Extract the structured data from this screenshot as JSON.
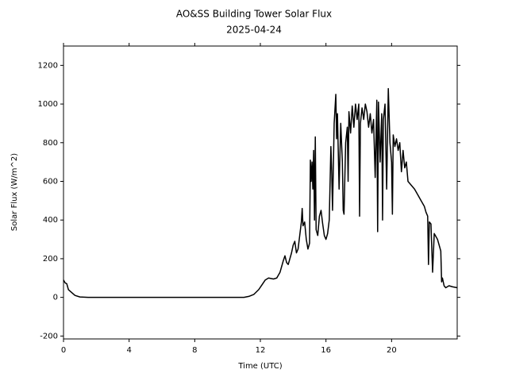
{
  "chart_data": {
    "type": "line",
    "title": "AO&SS Building Tower Solar Flux",
    "subtitle": "2025-04-24",
    "xlabel": "Time (UTC)",
    "ylabel": "Solar Flux (W/m^2)",
    "color": "#000000",
    "x": [
      0,
      0.1,
      0.2,
      0.3,
      0.5,
      0.7,
      1.0,
      1.5,
      11.0,
      11.3,
      11.6,
      11.9,
      12.1,
      12.3,
      12.5,
      12.8,
      13.0,
      13.2,
      13.4,
      13.5,
      13.6,
      13.7,
      13.9,
      14.0,
      14.1,
      14.2,
      14.3,
      14.4,
      14.5,
      14.55,
      14.6,
      14.7,
      14.8,
      14.9,
      15.0,
      15.05,
      15.1,
      15.15,
      15.2,
      15.25,
      15.3,
      15.35,
      15.4,
      15.5,
      15.6,
      15.7,
      15.8,
      15.9,
      16.0,
      16.1,
      16.2,
      16.3,
      16.35,
      16.4,
      16.5,
      16.6,
      16.65,
      16.7,
      16.8,
      16.9,
      17.0,
      17.05,
      17.1,
      17.2,
      17.3,
      17.35,
      17.4,
      17.5,
      17.6,
      17.7,
      17.8,
      17.9,
      18.0,
      18.05,
      18.1,
      18.2,
      18.3,
      18.4,
      18.5,
      18.6,
      18.7,
      18.8,
      18.9,
      19.0,
      19.1,
      19.15,
      19.2,
      19.3,
      19.4,
      19.45,
      19.5,
      19.6,
      19.7,
      19.8,
      19.9,
      20.0,
      20.05,
      20.1,
      20.2,
      20.3,
      20.4,
      20.5,
      20.6,
      20.7,
      20.8,
      20.9,
      21.0,
      21.2,
      21.4,
      21.6,
      21.8,
      22.0,
      22.1,
      22.2,
      22.25,
      22.3,
      22.4,
      22.5,
      22.6,
      22.8,
      22.9,
      23.0,
      23.05,
      23.1,
      23.2,
      23.3,
      23.5,
      23.7,
      24.0
    ],
    "values": [
      90,
      75,
      70,
      40,
      25,
      10,
      2,
      0,
      0,
      5,
      15,
      40,
      65,
      90,
      100,
      95,
      100,
      130,
      190,
      215,
      180,
      170,
      230,
      270,
      290,
      230,
      250,
      320,
      390,
      460,
      370,
      390,
      300,
      250,
      280,
      710,
      600,
      700,
      560,
      760,
      400,
      830,
      350,
      320,
      420,
      450,
      380,
      320,
      300,
      330,
      400,
      780,
      650,
      450,
      900,
      1050,
      820,
      950,
      560,
      900,
      700,
      450,
      430,
      800,
      880,
      600,
      960,
      850,
      990,
      880,
      1000,
      920,
      1000,
      420,
      900,
      980,
      920,
      1000,
      960,
      880,
      950,
      850,
      920,
      620,
      1020,
      340,
      1010,
      700,
      950,
      400,
      920,
      1000,
      560,
      1080,
      800,
      700,
      430,
      840,
      780,
      820,
      760,
      800,
      650,
      760,
      670,
      700,
      600,
      580,
      560,
      530,
      500,
      470,
      440,
      420,
      170,
      390,
      380,
      130,
      330,
      300,
      270,
      240,
      80,
      100,
      60,
      50,
      60,
      55,
      50
    ],
    "xlim": [
      0,
      24
    ],
    "ylim": [
      -215,
      1300
    ],
    "xticks": [
      0,
      4,
      8,
      12,
      16,
      20
    ],
    "yticks": [
      -200,
      0,
      200,
      400,
      600,
      800,
      1000,
      1200
    ]
  }
}
